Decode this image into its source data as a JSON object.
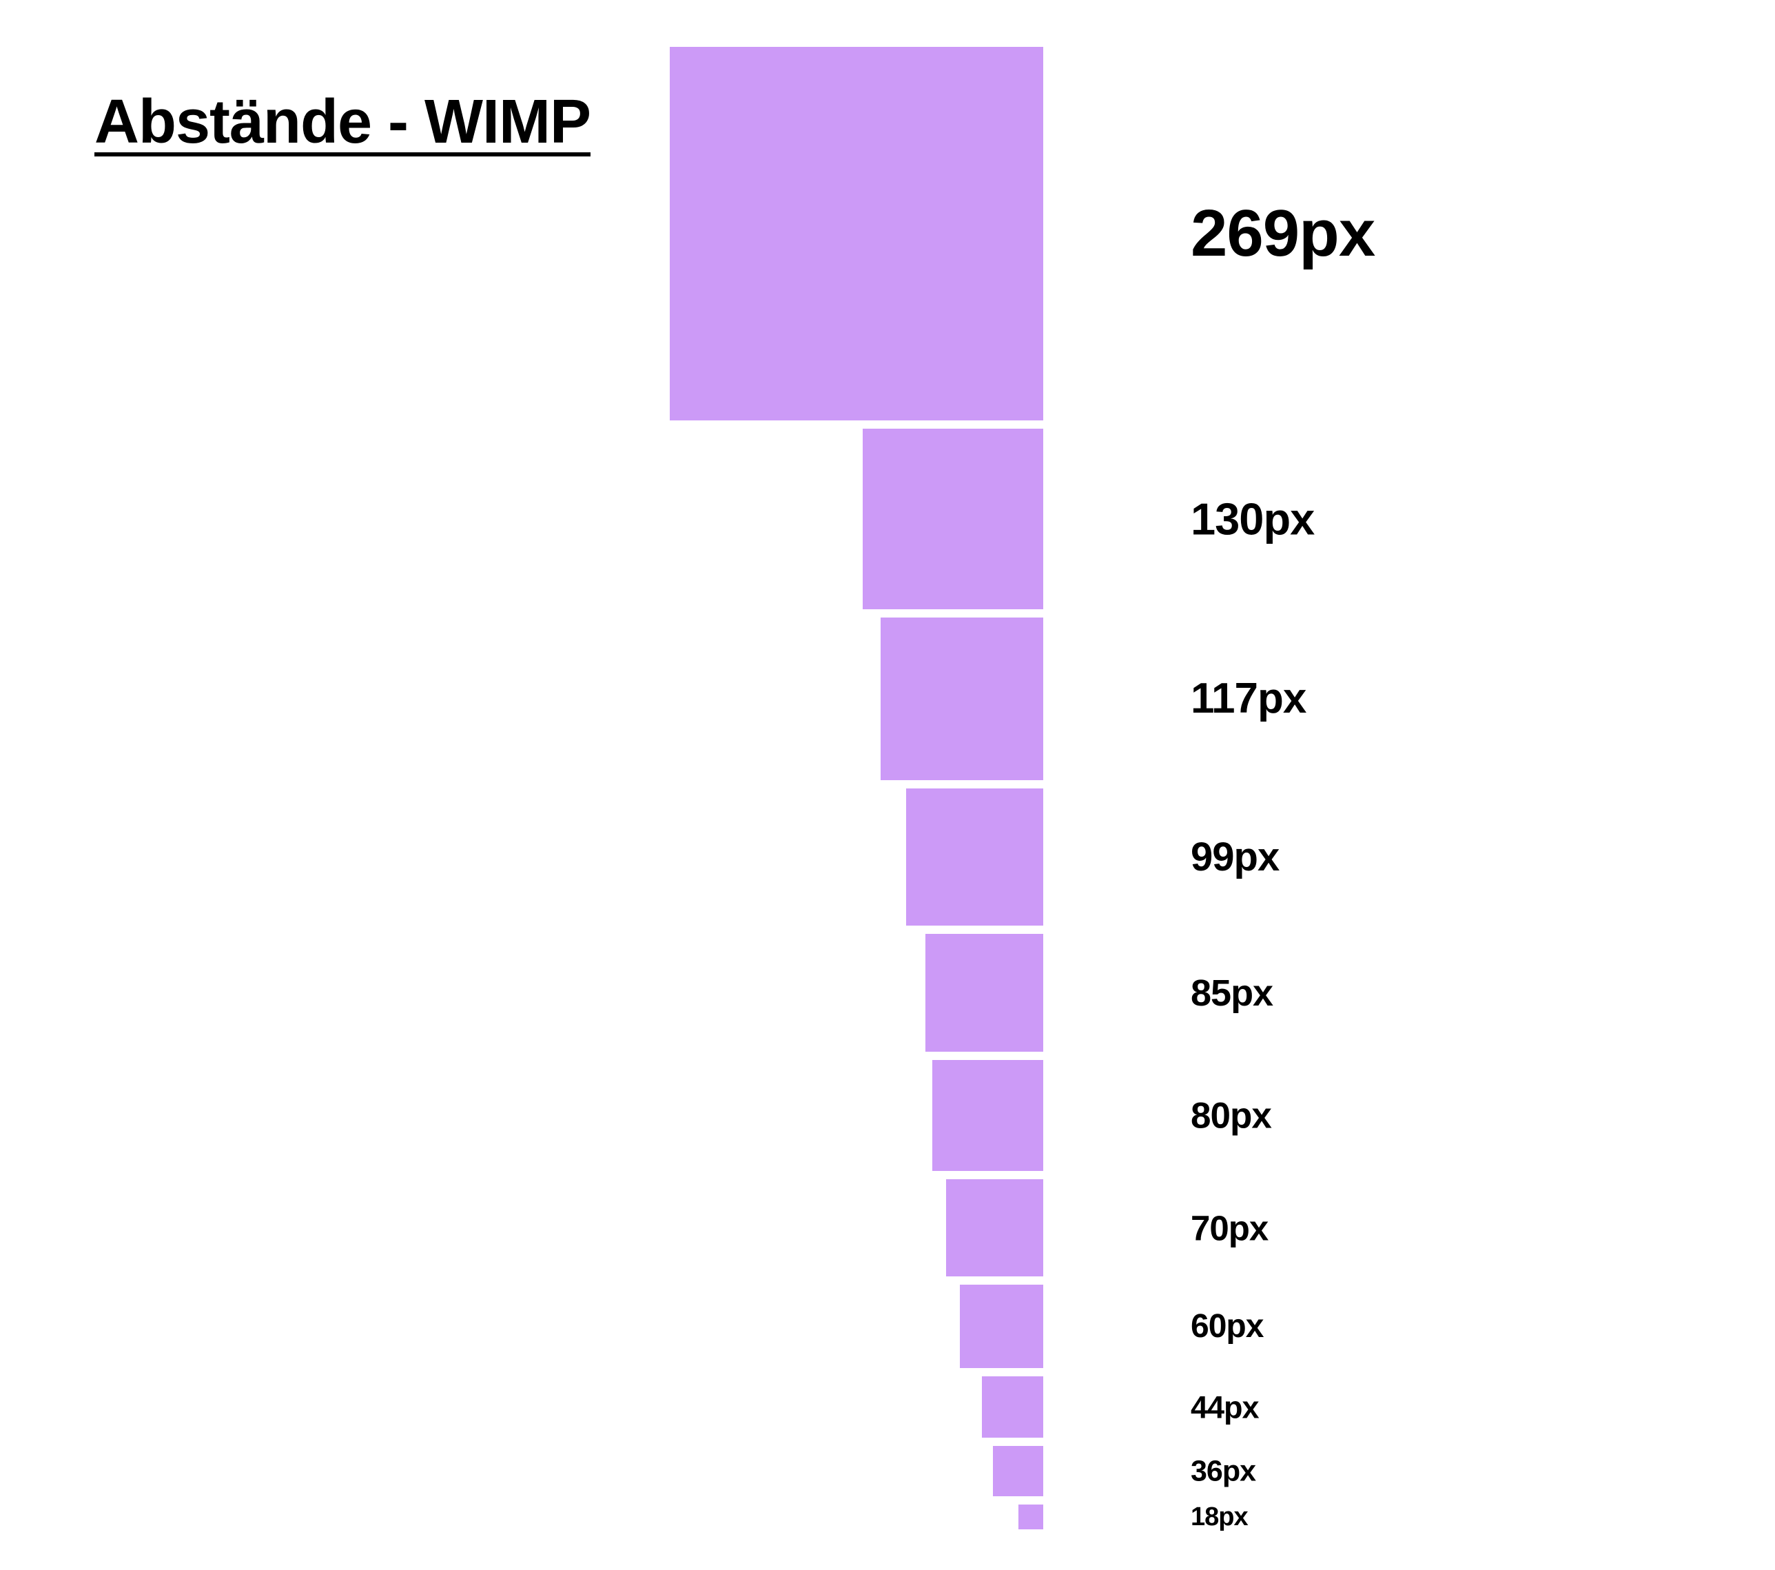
{
  "title": "Abstände - WIMP",
  "colors": {
    "swatch": "#cc9af7",
    "text": "#000000",
    "background": "#ffffff"
  },
  "spacings": [
    {
      "value": 269,
      "label": "269px"
    },
    {
      "value": 130,
      "label": "130px"
    },
    {
      "value": 117,
      "label": "117px"
    },
    {
      "value": 99,
      "label": "99px"
    },
    {
      "value": 85,
      "label": "85px"
    },
    {
      "value": 80,
      "label": "80px"
    },
    {
      "value": 70,
      "label": "70px"
    },
    {
      "value": 60,
      "label": "60px"
    },
    {
      "value": 44,
      "label": "44px"
    },
    {
      "value": 36,
      "label": "36px"
    },
    {
      "value": 18,
      "label": "18px"
    }
  ]
}
